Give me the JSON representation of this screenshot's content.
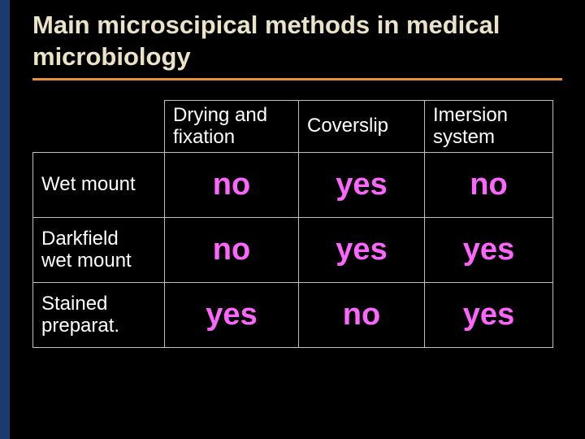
{
  "slide": {
    "background_color": "#000000",
    "accent_bar_color": "#1b3a6d",
    "title": "Main microscipical methods in medical microbiology",
    "title_color": "#ebe3c7",
    "title_underline_color": "#e8903c",
    "title_underline_width": 3
  },
  "table": {
    "border_color": "#bfbfbf",
    "border_width": 1,
    "header_text_color": "#ffffff",
    "row_label_color": "#ffffff",
    "cell_value_color": "#ff66ff",
    "columns": [
      "Drying and fixation",
      "Coverslip",
      "Imersion system"
    ],
    "rows": [
      {
        "label": "Wet mount",
        "values": [
          "no",
          "yes",
          "no"
        ]
      },
      {
        "label": "Darkfield\nwet mount",
        "values": [
          "no",
          "yes",
          "yes"
        ]
      },
      {
        "label": "Stained\npreparat.",
        "values": [
          "yes",
          "no",
          "yes"
        ]
      }
    ]
  }
}
